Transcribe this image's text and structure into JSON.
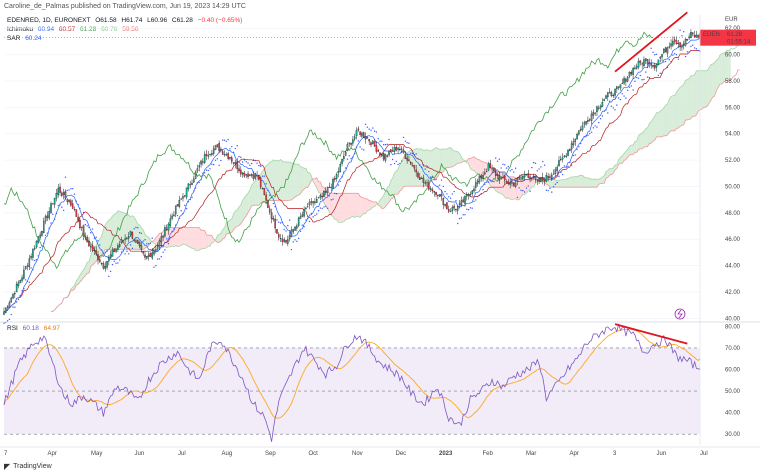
{
  "publisher": "Caroline_de_Palmas published on TradingView.com, Jun 19, 2023 14:29 UTC",
  "legend": {
    "symbol": "EDENRED, 1D, EURONEXT",
    "o": "O61.58",
    "h": "H61.74",
    "l": "L60.96",
    "c": "C61.28",
    "chg": "−0.40 (−0.65%)",
    "ichimoku_label": "Ichimoku",
    "ichimoku_vals": [
      "60.94",
      "60.57",
      "61.28",
      "60.76",
      "59.56"
    ],
    "sar_label": "SAR",
    "sar_val": "60.24",
    "rsi_label": "RSI",
    "rsi_vals": [
      "60.18",
      "64.97"
    ]
  },
  "price_label": {
    "ticker": "EDEN",
    "price": "61.28",
    "countdown": "01:55:14"
  },
  "currency": "EUR",
  "brand": "TradingView",
  "colors": {
    "up": "#22ab94",
    "down": "#f23645",
    "tenkan": "#2962ff",
    "kijun": "#b71c1c",
    "lagging": "#43a047",
    "span_a": "#a5d6a7",
    "span_b": "#ef9a9a",
    "cloud_bull": "#c8e6c9",
    "cloud_bear": "#ffcdd2",
    "sar": "#3d5afe",
    "rsi": "#7e57c2",
    "rsi_ma": "#ffa726",
    "trendline": "#e0161f"
  },
  "chart_data": [
    {
      "type": "candlestick",
      "title": "EDENRED, 1D, EURONEXT",
      "x_ticks": [
        "7",
        "Apr",
        "May",
        "Jun",
        "Jul",
        "Aug",
        "Sep",
        "Oct",
        "Nov",
        "Dec",
        "2023",
        "Feb",
        "Mar",
        "Apr",
        "3",
        "Jun",
        "Jul"
      ],
      "y_ticks": [
        "40.00",
        "42.00",
        "44.00",
        "46.00",
        "48.00",
        "50.00",
        "52.00",
        "54.00",
        "56.00",
        "58.00",
        "60.00",
        "62.00"
      ],
      "ylim": [
        39.8,
        63.0
      ],
      "path_anchors": [
        [
          0,
          40.5
        ],
        [
          10,
          43.2
        ],
        [
          20,
          46.5
        ],
        [
          30,
          49.8
        ],
        [
          38,
          48.5
        ],
        [
          45,
          46
        ],
        [
          55,
          44
        ],
        [
          63,
          45.5
        ],
        [
          70,
          46.5
        ],
        [
          78,
          44.5
        ],
        [
          85,
          45.5
        ],
        [
          93,
          47.8
        ],
        [
          100,
          49.5
        ],
        [
          106,
          51
        ],
        [
          112,
          52.5
        ],
        [
          118,
          53
        ],
        [
          125,
          52.2
        ],
        [
          132,
          51
        ],
        [
          140,
          50.8
        ],
        [
          146,
          48.5
        ],
        [
          152,
          46.3
        ],
        [
          156,
          45.8
        ],
        [
          162,
          47.2
        ],
        [
          168,
          48.5
        ],
        [
          176,
          49.2
        ],
        [
          183,
          50.5
        ],
        [
          190,
          53
        ],
        [
          196,
          54.2
        ],
        [
          203,
          53.4
        ],
        [
          210,
          52.2
        ],
        [
          218,
          53
        ],
        [
          225,
          51.8
        ],
        [
          232,
          50.3
        ],
        [
          240,
          49.5
        ],
        [
          246,
          48.2
        ],
        [
          252,
          48.5
        ],
        [
          260,
          50
        ],
        [
          268,
          51.5
        ],
        [
          275,
          50.5
        ],
        [
          282,
          50.2
        ],
        [
          289,
          51
        ],
        [
          295,
          50.3
        ],
        [
          302,
          50.8
        ],
        [
          310,
          52.3
        ],
        [
          318,
          54.2
        ],
        [
          325,
          55.5
        ],
        [
          333,
          56.8
        ],
        [
          340,
          57.4
        ],
        [
          346,
          58.6
        ],
        [
          350,
          59.2
        ],
        [
          355,
          59.6
        ],
        [
          360,
          59.2
        ],
        [
          365,
          60.2
        ],
        [
          370,
          61.2
        ],
        [
          375,
          60.7
        ],
        [
          380,
          61.5
        ],
        [
          385,
          61.28
        ]
      ],
      "ichimoku": {
        "conversion": 60.94,
        "base": 60.57,
        "lagging": 61.28,
        "lead_a": 60.76,
        "lead_b": 59.56
      },
      "sar_last": 60.24,
      "last_price": 61.28,
      "trendline": {
        "from": [
          338,
          58.7
        ],
        "to": [
          378,
          63.2
        ]
      }
    },
    {
      "type": "line",
      "title": "RSI",
      "y_ticks": [
        "30.00",
        "40.00",
        "50.00",
        "60.00",
        "70.00",
        "80.00"
      ],
      "ylim": [
        25,
        82
      ],
      "levels": [
        30,
        50,
        70
      ],
      "rsi_anchors": [
        [
          0,
          44
        ],
        [
          8,
          62
        ],
        [
          16,
          72
        ],
        [
          22,
          75
        ],
        [
          28,
          60
        ],
        [
          33,
          48
        ],
        [
          38,
          44
        ],
        [
          44,
          48
        ],
        [
          50,
          44
        ],
        [
          55,
          40
        ],
        [
          62,
          52
        ],
        [
          68,
          50
        ],
        [
          74,
          45
        ],
        [
          80,
          55
        ],
        [
          86,
          62
        ],
        [
          92,
          66
        ],
        [
          96,
          68
        ],
        [
          102,
          60
        ],
        [
          108,
          55
        ],
        [
          114,
          70
        ],
        [
          120,
          74
        ],
        [
          126,
          65
        ],
        [
          132,
          56
        ],
        [
          138,
          44
        ],
        [
          144,
          38
        ],
        [
          148,
          28
        ],
        [
          152,
          45
        ],
        [
          160,
          60
        ],
        [
          166,
          70
        ],
        [
          172,
          64
        ],
        [
          178,
          58
        ],
        [
          184,
          62
        ],
        [
          190,
          72
        ],
        [
          196,
          76
        ],
        [
          202,
          70
        ],
        [
          208,
          63
        ],
        [
          214,
          60
        ],
        [
          220,
          56
        ],
        [
          226,
          48
        ],
        [
          232,
          44
        ],
        [
          240,
          52
        ],
        [
          246,
          38
        ],
        [
          252,
          34
        ],
        [
          258,
          46
        ],
        [
          264,
          50
        ],
        [
          270,
          55
        ],
        [
          276,
          52
        ],
        [
          282,
          57
        ],
        [
          290,
          60
        ],
        [
          296,
          64
        ],
        [
          300,
          47
        ],
        [
          306,
          53
        ],
        [
          312,
          60
        ],
        [
          318,
          66
        ],
        [
          322,
          72
        ],
        [
          328,
          76
        ],
        [
          334,
          79
        ],
        [
          338,
          80
        ],
        [
          342,
          78
        ],
        [
          348,
          76
        ],
        [
          354,
          68
        ],
        [
          360,
          72
        ],
        [
          366,
          74
        ],
        [
          372,
          66
        ],
        [
          378,
          64
        ],
        [
          385,
          60.18
        ]
      ],
      "rsi_last": 60.18,
      "ma_last": 64.97,
      "trendline": {
        "from": [
          338,
          81
        ],
        "to": [
          378,
          72
        ]
      }
    }
  ]
}
